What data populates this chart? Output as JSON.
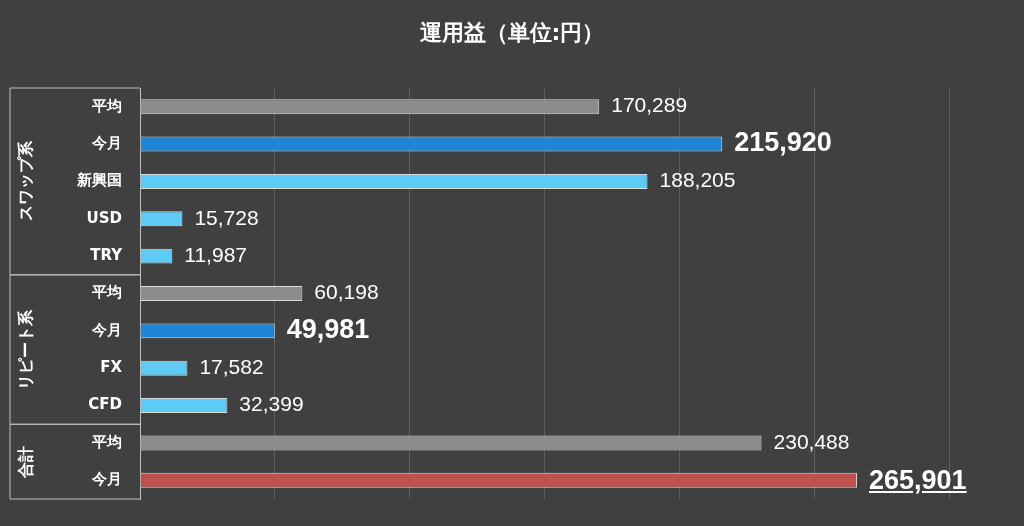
{
  "chart_data": {
    "type": "bar",
    "orientation": "horizontal",
    "title": "運用益（単位:円）",
    "categories": [
      "平均",
      "今月",
      "新興国",
      "USD",
      "TRY",
      "平均",
      "今月",
      "FX",
      "CFD",
      "平均",
      "今月"
    ],
    "values": [
      170289,
      215920,
      188205,
      15728,
      11987,
      60198,
      49981,
      17582,
      32399,
      230488,
      265901
    ],
    "colors": [
      "#8c8c8c",
      "#1f86d6",
      "#5ccbf5",
      "#5ccbf5",
      "#5ccbf5",
      "#8c8c8c",
      "#1f86d6",
      "#5ccbf5",
      "#5ccbf5",
      "#8c8c8c",
      "#c0504d"
    ],
    "annotations": [
      "スワップ系",
      "リピート系",
      "合計"
    ],
    "value_labels": [
      "170,289",
      "215,920",
      "188,205",
      "15,728",
      "11,987",
      "60,198",
      "49,981",
      "17,582",
      "32,399",
      "230,488",
      "265,901"
    ],
    "grid": "x",
    "legend": false
  }
}
